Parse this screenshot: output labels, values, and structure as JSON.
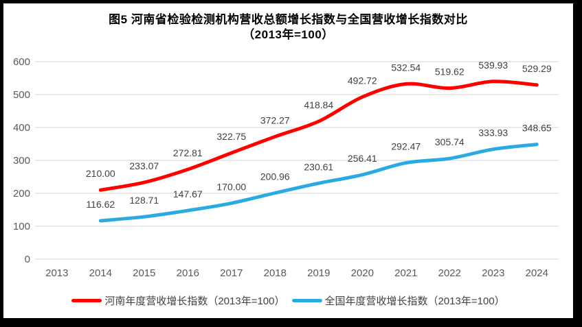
{
  "frame": {
    "background_color": "#ffffff",
    "border_color": "#000000"
  },
  "chart_data": {
    "type": "line",
    "title": "图5  河南省检验检测机构营收总额增长指数与全国营收增长指数对比",
    "subtitle": "（2013年=100）",
    "categories": [
      "2013",
      "2014",
      "2015",
      "2016",
      "2017",
      "2018",
      "2019",
      "2020",
      "2021",
      "2022",
      "2023",
      "2024"
    ],
    "series": [
      {
        "name": "河南年度营收增长指数（2013年=100）",
        "color": "#FF0000",
        "values": [
          null,
          210.0,
          233.07,
          272.81,
          322.75,
          372.27,
          418.84,
          492.72,
          532.54,
          519.62,
          539.93,
          529.29
        ]
      },
      {
        "name": "全国年度营收增长指数（2013年=100）",
        "color": "#29ABE2",
        "values": [
          null,
          116.62,
          128.71,
          147.67,
          170.0,
          200.96,
          230.61,
          256.41,
          292.47,
          305.74,
          333.93,
          348.65
        ]
      }
    ],
    "ylim": [
      0,
      600
    ],
    "yticks": [
      0,
      100,
      200,
      300,
      400,
      500,
      600
    ],
    "grid": true,
    "legend_position": "bottom",
    "data_labels": "2-decimal values above each point",
    "colors": {
      "grid_line": "#D9D9D9",
      "tick_label": "#595959",
      "data_label": "#404040",
      "title": "#000000"
    }
  }
}
